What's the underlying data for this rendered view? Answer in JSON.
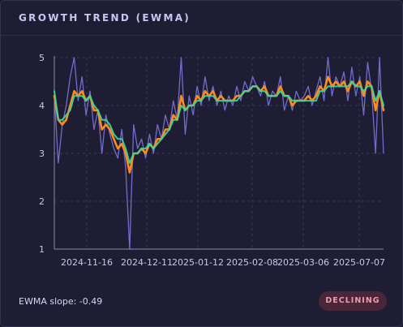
{
  "header": {
    "title": "GROWTH TREND (EWMA)"
  },
  "footer": {
    "slope_text": "EWMA slope: -0.49",
    "status_badge": "DECLINING"
  },
  "colors": {
    "raw": "#7f7be8",
    "ewma_fast": "#ff8c1a",
    "ewma_slow": "#3fd49a",
    "badge_bg": "#4a2639",
    "badge_text": "#ee9bb1"
  },
  "chart_data": {
    "type": "line",
    "y_ticks": [
      1,
      2,
      3,
      4,
      5
    ],
    "ylim": [
      1,
      5
    ],
    "x_tick_labels": [
      "2024-11-16",
      "2024-12-11",
      "2025-01-12",
      "2025-02-08",
      "2025-03-06",
      "2025-07-07"
    ],
    "grid": true,
    "series": [
      {
        "color": "#7f7be8",
        "values": [
          4.2,
          2.8,
          3.6,
          4.0,
          4.6,
          5.0,
          4.1,
          4.6,
          3.8,
          4.3,
          3.5,
          3.9,
          3.0,
          3.8,
          3.4,
          3.1,
          2.9,
          3.5,
          2.7,
          1.0,
          3.6,
          3.1,
          3.3,
          2.9,
          3.4,
          3.0,
          3.6,
          3.3,
          3.8,
          3.5,
          4.1,
          3.7,
          5.0,
          3.4,
          4.2,
          3.8,
          4.4,
          4.0,
          4.6,
          4.1,
          4.4,
          4.0,
          4.3,
          3.9,
          4.2,
          4.0,
          4.4,
          4.1,
          4.5,
          4.3,
          4.6,
          4.4,
          4.2,
          4.5,
          4.0,
          4.3,
          4.2,
          4.6,
          3.9,
          4.2,
          3.9,
          4.3,
          4.1,
          4.2,
          4.4,
          4.0,
          4.3,
          4.6,
          4.1,
          5.0,
          4.2,
          4.6,
          4.4,
          4.7,
          4.1,
          4.8,
          4.2,
          4.6,
          3.8,
          4.9,
          4.3,
          3.0,
          5.0,
          3.0
        ]
      },
      {
        "color": "#ff8c1a",
        "values": [
          4.2,
          3.7,
          3.6,
          3.7,
          4.0,
          4.3,
          4.2,
          4.3,
          4.1,
          4.2,
          3.9,
          3.9,
          3.5,
          3.6,
          3.5,
          3.3,
          3.1,
          3.2,
          3.0,
          2.6,
          3.0,
          3.0,
          3.1,
          3.0,
          3.2,
          3.1,
          3.3,
          3.3,
          3.5,
          3.5,
          3.8,
          3.7,
          4.2,
          3.9,
          4.0,
          4.0,
          4.2,
          4.1,
          4.3,
          4.2,
          4.3,
          4.1,
          4.2,
          4.1,
          4.1,
          4.1,
          4.2,
          4.2,
          4.3,
          4.3,
          4.4,
          4.4,
          4.3,
          4.4,
          4.2,
          4.2,
          4.2,
          4.4,
          4.2,
          4.2,
          4.0,
          4.1,
          4.1,
          4.1,
          4.2,
          4.1,
          4.2,
          4.4,
          4.3,
          4.6,
          4.4,
          4.5,
          4.4,
          4.5,
          4.3,
          4.5,
          4.4,
          4.5,
          4.2,
          4.5,
          4.4,
          3.9,
          4.3,
          3.9
        ]
      },
      {
        "color": "#3fd49a",
        "values": [
          4.3,
          3.7,
          3.7,
          3.8,
          3.9,
          4.2,
          4.2,
          4.2,
          4.1,
          4.2,
          4.0,
          3.9,
          3.7,
          3.7,
          3.6,
          3.4,
          3.3,
          3.3,
          3.1,
          2.8,
          3.0,
          3.0,
          3.1,
          3.1,
          3.2,
          3.1,
          3.2,
          3.3,
          3.4,
          3.5,
          3.7,
          3.7,
          4.0,
          3.9,
          4.0,
          4.0,
          4.1,
          4.1,
          4.2,
          4.2,
          4.2,
          4.1,
          4.1,
          4.1,
          4.1,
          4.1,
          4.1,
          4.2,
          4.3,
          4.3,
          4.4,
          4.4,
          4.3,
          4.3,
          4.2,
          4.2,
          4.2,
          4.3,
          4.2,
          4.2,
          4.1,
          4.1,
          4.1,
          4.1,
          4.1,
          4.1,
          4.1,
          4.3,
          4.3,
          4.4,
          4.4,
          4.4,
          4.4,
          4.4,
          4.4,
          4.5,
          4.4,
          4.4,
          4.3,
          4.4,
          4.4,
          4.1,
          4.3,
          4.0
        ]
      }
    ]
  }
}
